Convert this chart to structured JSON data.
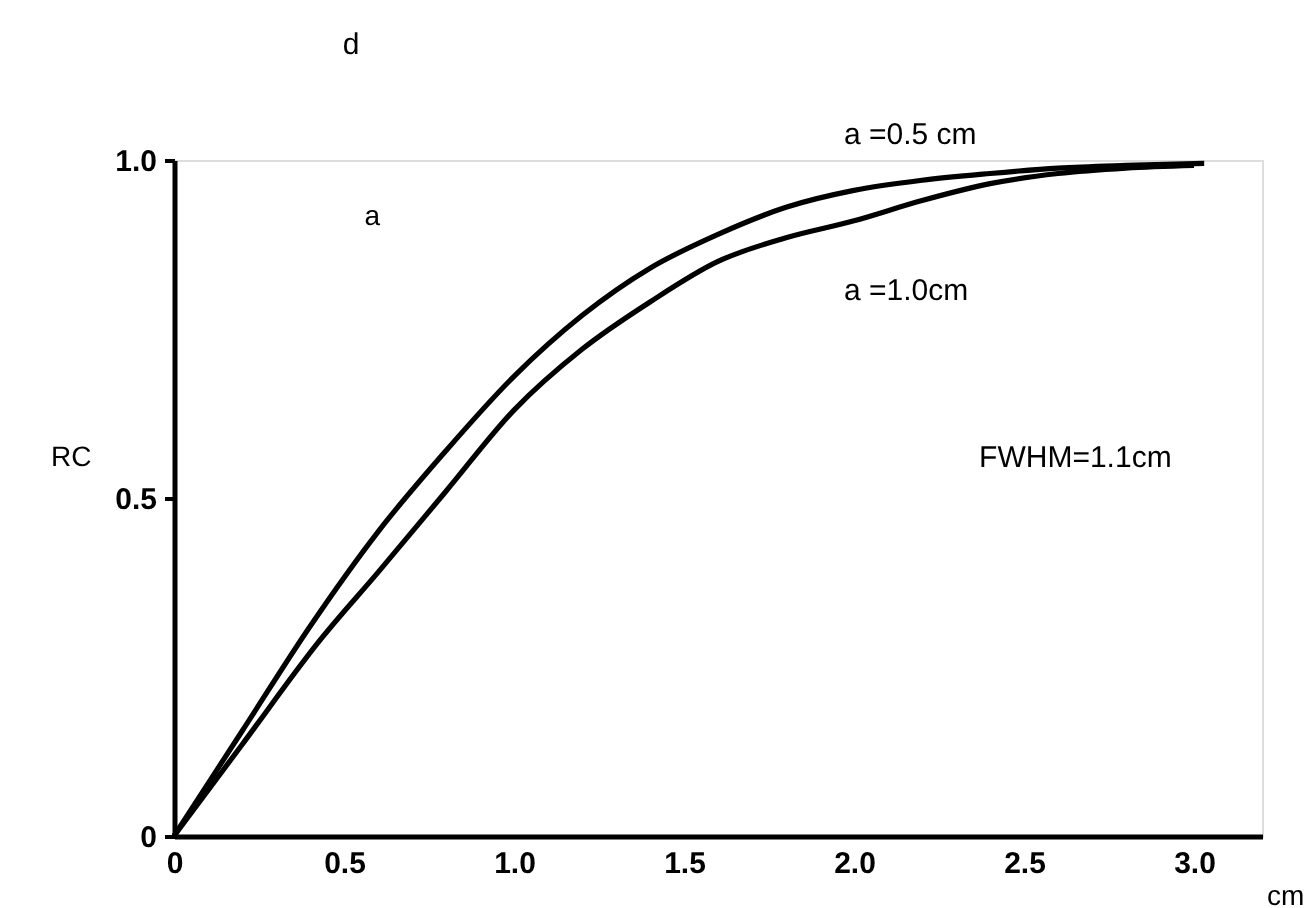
{
  "chart_data": {
    "type": "line",
    "xlabel": "cm",
    "ylabel": "RC",
    "xlim": [
      0,
      3.2
    ],
    "ylim": [
      0,
      1
    ],
    "xticks": [
      {
        "value": 0,
        "label": "0"
      },
      0.5,
      {
        "value": 1,
        "label": "1.0"
      },
      1.5,
      {
        "value": 2,
        "label": "2.0"
      },
      2.5,
      {
        "value": 3,
        "label": "3.0"
      }
    ],
    "yticks": [
      {
        "value": 0,
        "label": "0"
      },
      0.5,
      {
        "value": 1,
        "label": "1.0"
      }
    ],
    "grid": false,
    "marker": "none",
    "line_style": "solid",
    "series": [
      {
        "color": "#000000",
        "x": [
          0,
          0.2,
          0.4,
          0.6,
          0.8,
          1.0,
          1.2,
          1.4,
          1.6,
          1.8,
          2.0,
          2.2,
          2.4,
          2.6,
          2.8,
          3.03
        ],
        "values": [
          0,
          0.155,
          0.31,
          0.45,
          0.57,
          0.68,
          0.77,
          0.84,
          0.89,
          0.93,
          0.955,
          0.97,
          0.98,
          0.988,
          0.992,
          0.995
        ]
      },
      {
        "color": "#000000",
        "x": [
          0,
          0.2,
          0.43,
          0.6,
          0.8,
          1.0,
          1.2,
          1.4,
          1.6,
          1.8,
          2.0,
          2.2,
          2.4,
          2.6,
          2.8,
          3.0
        ],
        "values": [
          0,
          0.135,
          0.29,
          0.39,
          0.51,
          0.63,
          0.72,
          0.79,
          0.85,
          0.885,
          0.91,
          0.94,
          0.965,
          0.98,
          0.988,
          0.992
        ]
      }
    ],
    "annotations": [
      {
        "text": "a =0.5 cm",
        "x": 1.9,
        "y": 0.944
      },
      {
        "text": "a =1.0cm",
        "x": 1.9,
        "y": 0.896
      },
      "FWHM=1.1cm",
      "d",
      "a"
    ]
  }
}
